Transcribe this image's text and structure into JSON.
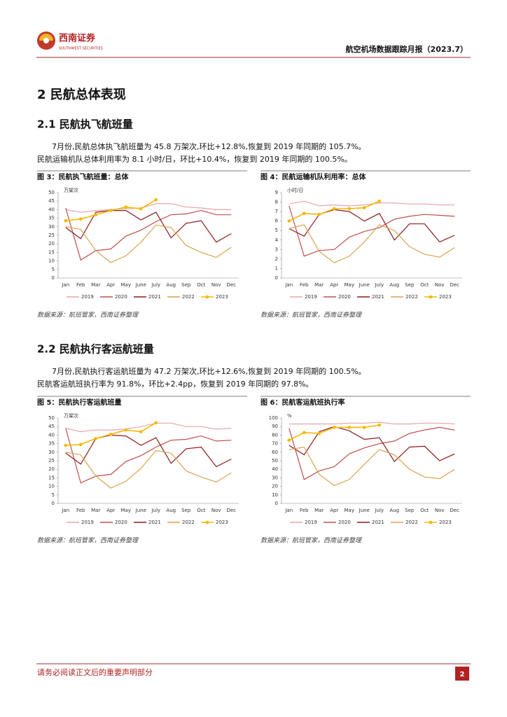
{
  "header": {
    "logo_cn": "西南证券",
    "logo_en": "SOUTHWEST SECURITIES",
    "report": "航空机场数据跟踪月报（2023.7）"
  },
  "section": {
    "title": "2 民航总体表现"
  },
  "sub1": {
    "title": "2.1 民航执飞航班量",
    "paras": [
      "7月份,民航总体执飞航班量为 45.8 万架次,环比+12.8%,恢复到 2019 年同期的 105.7%。",
      "民航运输机队总体利用率为 8.1 小时/日，环比+10.4%，恢复到 2019 年同期的 100.5%。"
    ]
  },
  "sub2": {
    "title": "2.2 民航执行客运航班量",
    "paras": [
      "7月份,民航执行客运航班量为 47.2 万架次,环比+12.6%,恢复到 2019 年同期的 100.5%。",
      "民航客运航班执行率为 91.8%，环比+2.4pp，恢复到 2019 年同期的 97.8%。"
    ]
  },
  "footer": {
    "notice": "请务必阅读正文后的重要声明部分",
    "page": "2"
  },
  "chart_data": [
    {
      "type": "line",
      "title": "图 3：民航执飞航班量：总体",
      "unit": "万架次",
      "source": "数据来源：航班管家，西南证券整理",
      "categories": [
        "Jan",
        "Feb",
        "Mar",
        "Apr",
        "May",
        "June",
        "July",
        "Aug",
        "Sep",
        "Oct",
        "Nov",
        "Dec"
      ],
      "ylim": [
        0,
        50
      ],
      "yticks": [
        0,
        5,
        10,
        15,
        20,
        25,
        30,
        35,
        40,
        45,
        50
      ],
      "series": [
        {
          "name": "2019",
          "color": "#e8a5ab",
          "values": [
            40,
            38.5,
            39.5,
            40,
            40.5,
            41,
            43.5,
            43.5,
            41.5,
            41,
            40,
            40
          ]
        },
        {
          "name": "2020",
          "color": "#c0504d",
          "values": [
            41,
            10.5,
            16,
            17,
            24.5,
            28,
            33,
            37,
            37.5,
            39.5,
            37,
            37
          ]
        },
        {
          "name": "2021",
          "color": "#8b1a1a",
          "values": [
            29.5,
            23,
            38.5,
            39.5,
            39.5,
            34,
            38.5,
            23.5,
            32,
            33.5,
            21,
            26
          ]
        },
        {
          "name": "2022",
          "color": "#d9a44e",
          "values": [
            30,
            28.5,
            16,
            9,
            13,
            21,
            31,
            29.5,
            19,
            15,
            12,
            18
          ]
        },
        {
          "name": "2023",
          "color": "#f5b800",
          "markers": true,
          "values": [
            33.5,
            34.5,
            37,
            39.5,
            41.5,
            40.5,
            45.8,
            null,
            null,
            null,
            null,
            null
          ]
        }
      ]
    },
    {
      "type": "line",
      "title": "图 4：民航运输机队利用率：总体",
      "unit": "小时/日",
      "source": "数据来源：航班管家，西南证券整理",
      "categories": [
        "Jan",
        "Feb",
        "Mar",
        "Apr",
        "May",
        "June",
        "July",
        "Aug",
        "Sep",
        "Oct",
        "Nov",
        "Dec"
      ],
      "ylim": [
        0,
        9
      ],
      "yticks": [
        0,
        1,
        2,
        3,
        4,
        5,
        6,
        7,
        8,
        9
      ],
      "series": [
        {
          "name": "2019",
          "color": "#e8a5ab",
          "values": [
            7.8,
            8.1,
            7.6,
            7.7,
            7.6,
            7.7,
            7.9,
            7.9,
            7.8,
            7.8,
            7.7,
            7.7
          ]
        },
        {
          "name": "2020",
          "color": "#c0504d",
          "values": [
            7.6,
            2.3,
            2.9,
            3,
            4.3,
            4.9,
            5.3,
            6.2,
            6.5,
            6.7,
            6.6,
            6.5
          ]
        },
        {
          "name": "2021",
          "color": "#8b1a1a",
          "values": [
            5.2,
            4.4,
            6.7,
            7.2,
            7,
            6,
            6.8,
            4,
            5.7,
            5.7,
            3.8,
            4.5
          ]
        },
        {
          "name": "2022",
          "color": "#d9a44e",
          "values": [
            5.2,
            5.6,
            2.8,
            1.6,
            2.3,
            3.8,
            5.6,
            5,
            3.3,
            2.5,
            2.2,
            3.2
          ]
        },
        {
          "name": "2023",
          "color": "#f5b800",
          "markers": true,
          "values": [
            6,
            6.8,
            6.7,
            7.3,
            7.3,
            7.4,
            8.1,
            null,
            null,
            null,
            null,
            null
          ]
        }
      ]
    },
    {
      "type": "line",
      "title": "图 5：民航执行客运航班量",
      "unit": "万架次",
      "source": "数据来源：航班管家，西南证券整理",
      "categories": [
        "Jan",
        "Feb",
        "Mar",
        "Apr",
        "May",
        "June",
        "July",
        "Aug",
        "Sep",
        "Oct",
        "Nov",
        "Dec"
      ],
      "ylim": [
        0,
        50
      ],
      "yticks": [
        0,
        5,
        10,
        15,
        20,
        25,
        30,
        35,
        40,
        45,
        50
      ],
      "series": [
        {
          "name": "2019",
          "color": "#e8a5ab",
          "values": [
            44,
            42,
            43,
            43,
            43.5,
            45,
            47,
            47,
            45,
            45,
            43.5,
            44
          ]
        },
        {
          "name": "2020",
          "color": "#c0504d",
          "values": [
            44,
            12,
            16,
            17,
            24.5,
            28,
            33,
            37,
            37.5,
            39.5,
            36.5,
            37
          ]
        },
        {
          "name": "2021",
          "color": "#8b1a1a",
          "values": [
            29.5,
            23,
            38,
            40,
            39.5,
            34,
            38.5,
            23.5,
            32,
            33,
            21.5,
            26
          ]
        },
        {
          "name": "2022",
          "color": "#d9a44e",
          "values": [
            30,
            28.5,
            16,
            9,
            13,
            20.5,
            31,
            29.5,
            19,
            15.5,
            12.5,
            18
          ]
        },
        {
          "name": "2023",
          "color": "#f5b800",
          "markers": true,
          "values": [
            34,
            34.5,
            38,
            40.5,
            43,
            42,
            47.2,
            null,
            null,
            null,
            null,
            null
          ]
        }
      ]
    },
    {
      "type": "line",
      "title": "图 6：民航客运航班执行率",
      "unit": "%",
      "source": "数据来源：航班管家，西南证券整理",
      "categories": [
        "Jan",
        "Feb",
        "Mar",
        "Apr",
        "May",
        "June",
        "July",
        "Aug",
        "Sep",
        "Oct",
        "Nov",
        "Dec"
      ],
      "ylim": [
        0,
        100
      ],
      "yticks": [
        0,
        10,
        20,
        30,
        40,
        50,
        60,
        70,
        80,
        90,
        100
      ],
      "series": [
        {
          "name": "2019",
          "color": "#e8a5ab",
          "values": [
            93,
            93,
            93,
            93,
            94,
            94,
            95,
            93,
            93,
            94,
            94,
            93
          ]
        },
        {
          "name": "2020",
          "color": "#c0504d",
          "values": [
            88,
            28,
            38,
            43,
            58,
            65,
            70,
            73,
            82,
            86,
            89,
            86
          ]
        },
        {
          "name": "2021",
          "color": "#8b1a1a",
          "values": [
            68,
            57,
            84,
            90,
            85,
            75,
            77,
            49,
            66,
            67,
            50,
            58
          ]
        },
        {
          "name": "2022",
          "color": "#d9a44e",
          "values": [
            63,
            66,
            34,
            21,
            28,
            46,
            63,
            57,
            40,
            31,
            29,
            40
          ]
        },
        {
          "name": "2023",
          "color": "#f5b800",
          "markers": true,
          "values": [
            74,
            83,
            82,
            89,
            89,
            89,
            91.8,
            null,
            null,
            null,
            null,
            null
          ]
        }
      ]
    }
  ]
}
